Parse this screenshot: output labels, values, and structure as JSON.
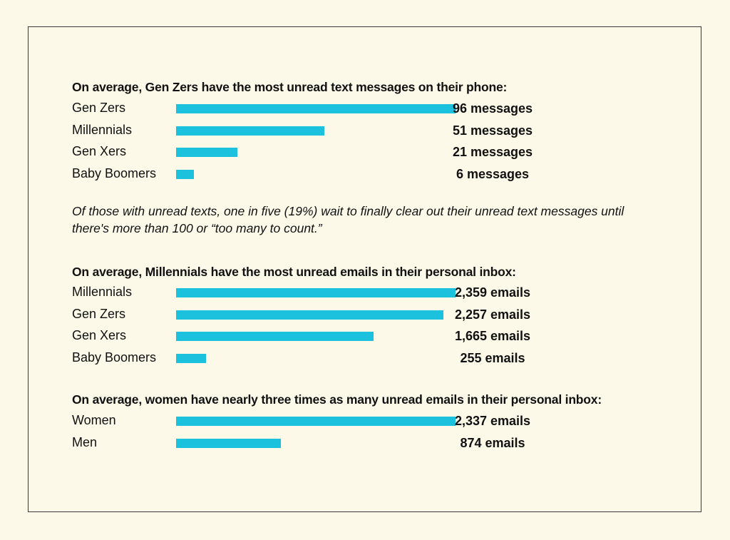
{
  "colors": {
    "background": "#fcf9e9",
    "bar": "#1cc1de",
    "border": "#3a3a3a"
  },
  "note": "Of those with unread texts, one in five (19%) wait to finally clear out their unread text messages until there's more than 100 or “too many to count.”",
  "chart_data": [
    {
      "type": "bar",
      "orientation": "horizontal",
      "title": "On average, Gen Zers have the most unread text messages on their phone:",
      "categories": [
        "Gen Zers",
        "Millennials",
        "Gen Xers",
        "Baby Boomers"
      ],
      "values": [
        96,
        51,
        21,
        6
      ],
      "value_labels": [
        "96 messages",
        "51 messages",
        "21 messages",
        "6 messages"
      ]
    },
    {
      "type": "bar",
      "orientation": "horizontal",
      "title": "On average, Millennials have the most unread emails in their personal inbox:",
      "categories": [
        "Millennials",
        "Gen Zers",
        "Gen Xers",
        "Baby Boomers"
      ],
      "values": [
        2359,
        2257,
        1665,
        255
      ],
      "value_labels": [
        "2,359 emails",
        "2,257 emails",
        "1,665 emails",
        "255 emails"
      ]
    },
    {
      "type": "bar",
      "orientation": "horizontal",
      "title": "On average, women have nearly three times as many unread emails in their personal inbox:",
      "categories": [
        "Women",
        "Men"
      ],
      "values": [
        2337,
        874
      ],
      "value_labels": [
        "2,337 emails",
        "874 emails"
      ]
    }
  ]
}
